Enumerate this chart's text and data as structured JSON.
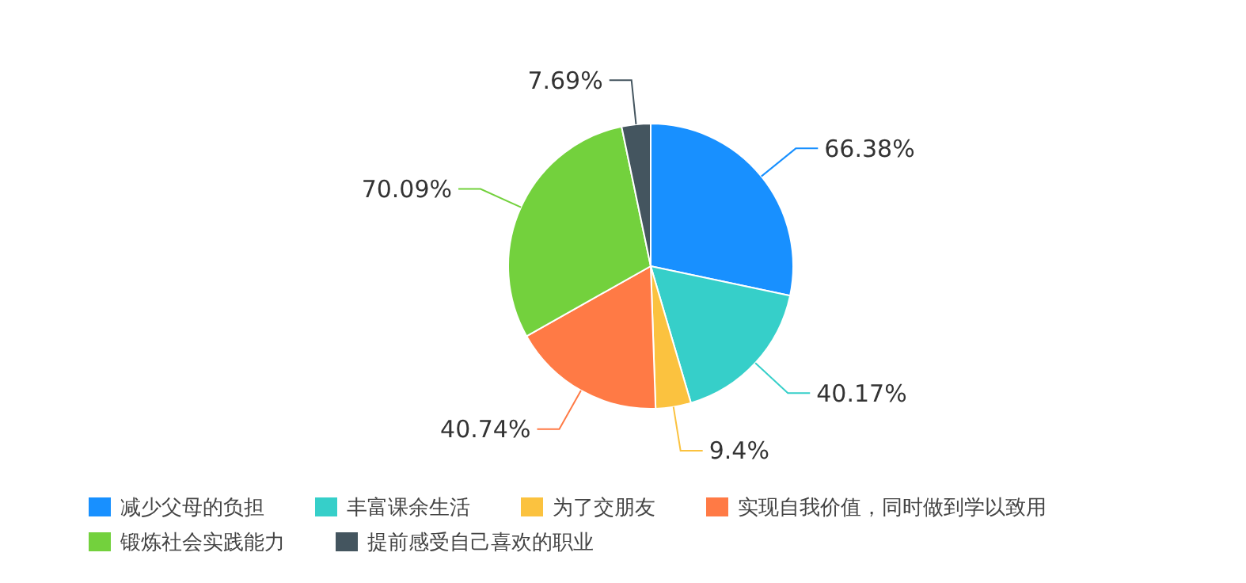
{
  "chart_data": {
    "type": "pie",
    "categories": [
      "减少父母的负担",
      "丰富课余生活",
      "为了交朋友",
      "实现自我价值，同时做到学以致用",
      "锻炼社会实践能力",
      "提前感受自己喜欢的职业"
    ],
    "values": [
      66.38,
      40.17,
      9.4,
      40.74,
      70.09,
      7.69
    ],
    "colors": [
      "#1890ff",
      "#36cfc9",
      "#fbc23f",
      "#ff7a45",
      "#73d13d",
      "#44555f"
    ],
    "value_labels": [
      "66.38%",
      "40.17%",
      "9.4%",
      "40.74%",
      "70.09%",
      "7.69%"
    ],
    "legend": "bottom"
  }
}
